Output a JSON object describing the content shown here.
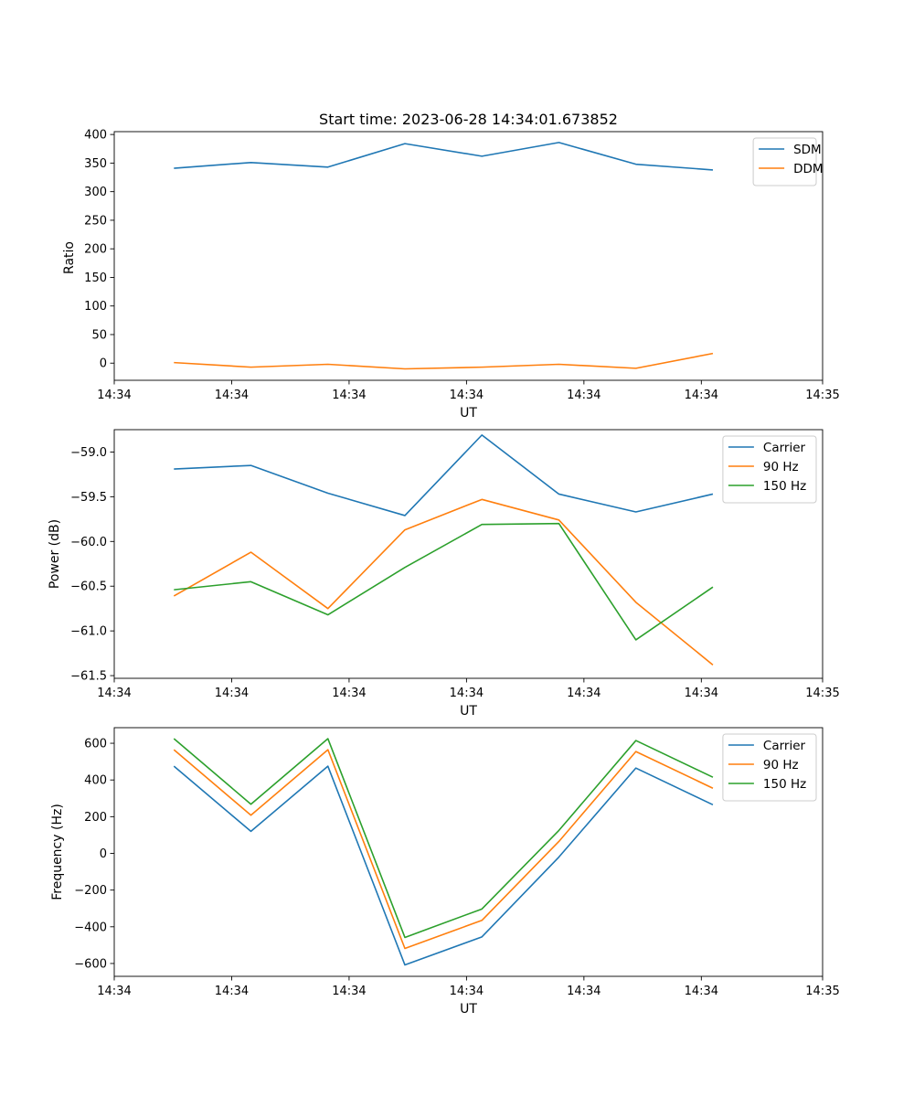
{
  "colors": {
    "blue": "#1f77b4",
    "orange": "#ff7f0e",
    "green": "#2ca02c"
  },
  "chart_data": [
    {
      "type": "line",
      "title": "Start time: 2023-06-28 14:34:01.673852",
      "xlabel": "UT",
      "ylabel": "Ratio",
      "x_ticks": [
        "14:34",
        "14:34",
        "14:34",
        "14:34",
        "14:34",
        "14:34",
        "14:35"
      ],
      "y_ticks": [
        "0",
        "50",
        "100",
        "150",
        "200",
        "250",
        "300",
        "350",
        "400"
      ],
      "ylim": [
        -30,
        405
      ],
      "legend_position": "top-right",
      "x": [
        1,
        2,
        3,
        4,
        5,
        6,
        7,
        8
      ],
      "series": [
        {
          "name": "SDM",
          "color": "#1f77b4",
          "values": [
            341,
            351,
            343,
            384,
            362,
            386,
            348,
            338
          ]
        },
        {
          "name": "DDM",
          "color": "#ff7f0e",
          "values": [
            1,
            -7,
            -2,
            -10,
            -7,
            -2,
            -9,
            17
          ]
        }
      ]
    },
    {
      "type": "line",
      "title": "",
      "xlabel": "UT",
      "ylabel": "Power (dB)",
      "x_ticks": [
        "14:34",
        "14:34",
        "14:34",
        "14:34",
        "14:34",
        "14:34",
        "14:35"
      ],
      "y_ticks": [
        "−61.5",
        "−61.0",
        "−60.5",
        "−60.0",
        "−59.5",
        "−59.0"
      ],
      "ylim": [
        -61.53,
        -58.75
      ],
      "legend_position": "top-right",
      "x": [
        1,
        2,
        3,
        4,
        5,
        6,
        7,
        8
      ],
      "series": [
        {
          "name": "Carrier",
          "color": "#1f77b4",
          "values": [
            -59.19,
            -59.15,
            -59.46,
            -59.71,
            -58.81,
            -59.47,
            -59.67,
            -59.47
          ]
        },
        {
          "name": "90 Hz",
          "color": "#ff7f0e",
          "values": [
            -60.61,
            -60.12,
            -60.75,
            -59.87,
            -59.53,
            -59.76,
            -60.68,
            -61.38
          ]
        },
        {
          "name": "150 Hz",
          "color": "#2ca02c",
          "values": [
            -60.54,
            -60.45,
            -60.82,
            -60.29,
            -59.81,
            -59.8,
            -61.1,
            -60.51
          ]
        }
      ]
    },
    {
      "type": "line",
      "title": "",
      "xlabel": "UT",
      "ylabel": "Frequency (Hz)",
      "x_ticks": [
        "14:34",
        "14:34",
        "14:34",
        "14:34",
        "14:34",
        "14:34",
        "14:35"
      ],
      "y_ticks": [
        "−600",
        "−400",
        "−200",
        "0",
        "200",
        "400",
        "600"
      ],
      "ylim": [
        -670,
        685
      ],
      "legend_position": "top-right",
      "x": [
        1,
        2,
        3,
        4,
        5,
        6,
        7,
        8
      ],
      "series": [
        {
          "name": "Carrier",
          "color": "#1f77b4",
          "values": [
            475,
            120,
            475,
            -608,
            -455,
            -20,
            465,
            265
          ]
        },
        {
          "name": "90 Hz",
          "color": "#ff7f0e",
          "values": [
            565,
            208,
            565,
            -518,
            -365,
            65,
            555,
            355
          ]
        },
        {
          "name": "150 Hz",
          "color": "#2ca02c",
          "values": [
            625,
            268,
            625,
            -458,
            -303,
            125,
            615,
            415
          ]
        }
      ]
    }
  ]
}
